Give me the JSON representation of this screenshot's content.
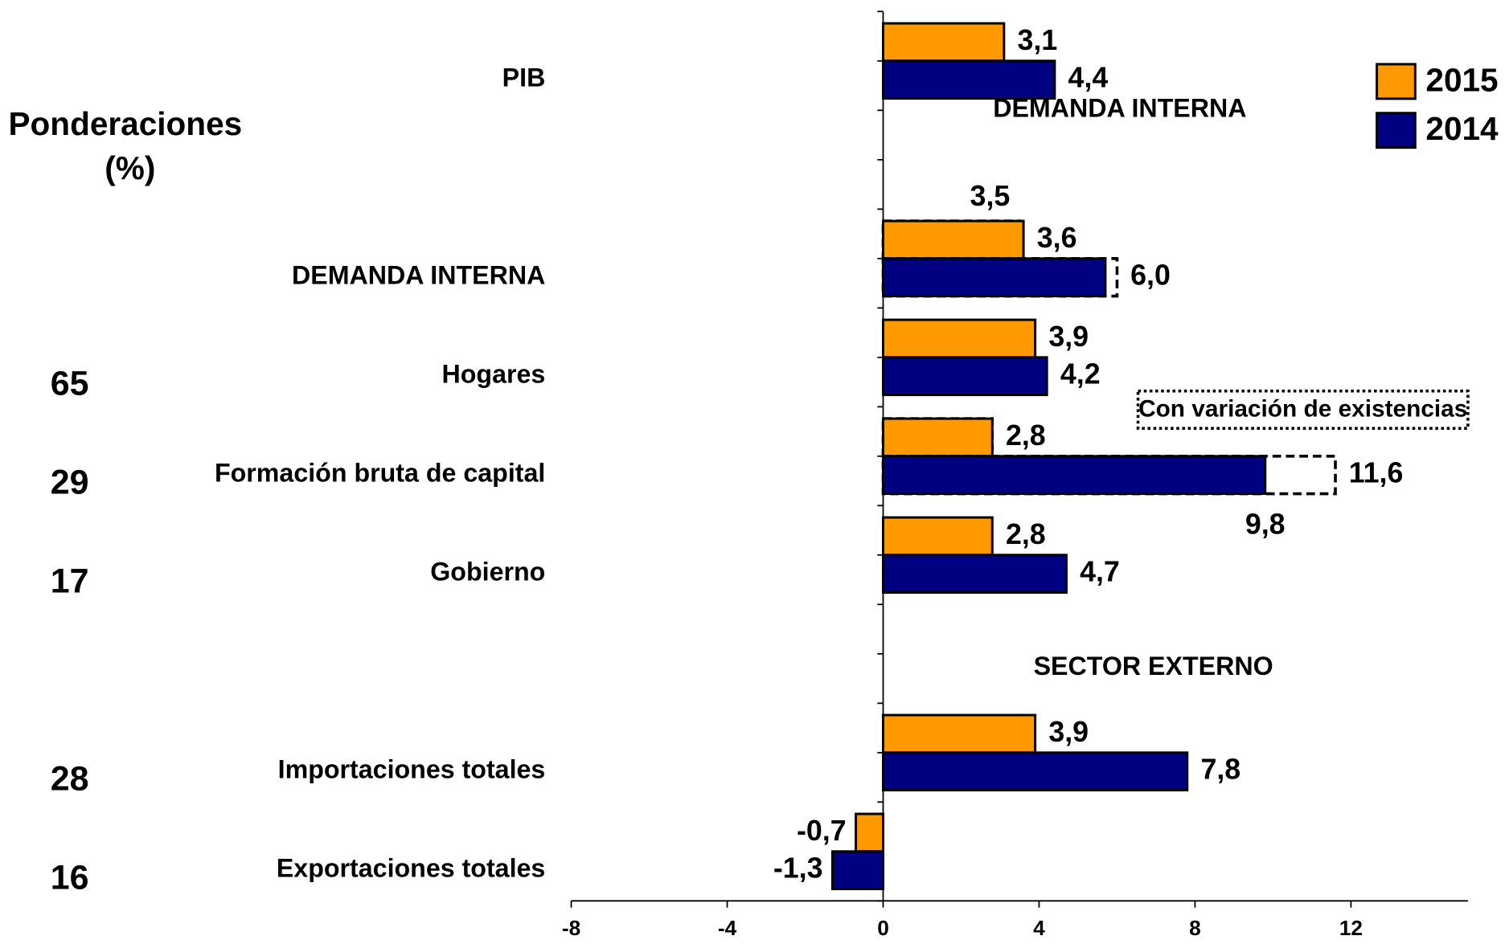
{
  "chart_data": {
    "type": "bar",
    "orientation": "horizontal",
    "categories": [
      "PIB",
      null,
      "DEMANDA INTERNA",
      "Hogares",
      "Formación bruta de capital",
      "Gobierno",
      null,
      "Importaciones totales",
      "Exportaciones totales"
    ],
    "series": [
      {
        "name": "2015",
        "color": "#ff9900",
        "values": [
          3.1,
          null,
          3.6,
          3.9,
          2.8,
          2.8,
          null,
          3.9,
          -0.7
        ],
        "value_labels": [
          "3,1",
          null,
          "3,6",
          "3,9",
          "2,8",
          "2,8",
          null,
          "3,9",
          "-0,7"
        ]
      },
      {
        "name": "2014",
        "color": "#000080",
        "values": [
          4.4,
          null,
          5.7,
          4.2,
          9.8,
          4.7,
          null,
          7.8,
          -1.3
        ],
        "value_labels": [
          "4,4",
          null,
          null,
          "4,2",
          "9,8",
          "4,7",
          null,
          "7,8",
          "-1,3"
        ]
      }
    ],
    "dashed": {
      "label": "Con variación de existencias",
      "values": [
        [
          null,
          null,
          3.5,
          null,
          2.8,
          null,
          null,
          null,
          null
        ],
        [
          null,
          null,
          6.0,
          null,
          11.6,
          null,
          null,
          null,
          null
        ]
      ],
      "value_labels": [
        [
          null,
          null,
          "3,5",
          null,
          null,
          null,
          null,
          null,
          null
        ],
        [
          null,
          null,
          "6,0",
          null,
          "11,6",
          null,
          null,
          null,
          null
        ]
      ]
    },
    "weights_title": [
      "Ponderaciones",
      "(%)"
    ],
    "weights": [
      null,
      null,
      null,
      65,
      29,
      17,
      null,
      28,
      16
    ],
    "annotations": [
      "DEMANDA INTERNA",
      "SECTOR EXTERNO"
    ],
    "xlim": [
      -8,
      15
    ],
    "xticks": [
      -8,
      -4,
      0,
      4,
      8,
      12
    ],
    "legend": "top-right"
  }
}
